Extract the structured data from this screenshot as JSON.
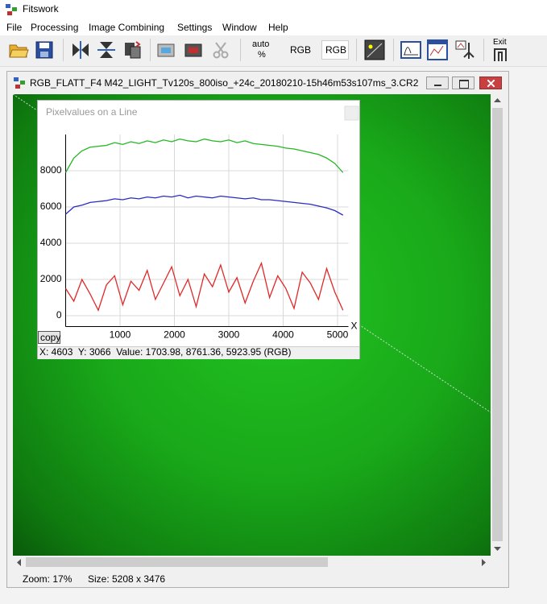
{
  "app": {
    "title": "Fitswork",
    "menu": [
      "File",
      "Processing",
      "Image Combining",
      "Settings",
      "Window",
      "Help"
    ],
    "toolbar": {
      "auto": "auto",
      "percent": "%",
      "rgb_plain": "RGB",
      "rgb_boxed": "RGB",
      "exit": "Exit"
    }
  },
  "document": {
    "title": "RGB_FLATT_F4 M42_LIGHT_Tv120s_800iso_+24c_20180210-15h46m53s107ms_3.CR2",
    "zoom": "Zoom: 17%",
    "size": "Size: 5208 x 3476"
  },
  "plot_window": {
    "copy": "copy",
    "readout": "X: 4603  Y: 3066  Value: 1703.98, 8761.36, 5923.95 (RGB)"
  },
  "chart_data": {
    "type": "line",
    "title": "Pixelvalues on a Line",
    "xlabel": "X",
    "x": [
      0,
      150,
      300,
      450,
      600,
      750,
      900,
      1050,
      1200,
      1350,
      1500,
      1650,
      1800,
      1950,
      2100,
      2250,
      2400,
      2550,
      2700,
      2850,
      3000,
      3150,
      3300,
      3450,
      3600,
      3750,
      3900,
      4050,
      4200,
      4350,
      4500,
      4650,
      4800,
      4950,
      5100
    ],
    "series": [
      {
        "color": "#22b822",
        "values": [
          7900,
          8700,
          9100,
          9300,
          9350,
          9400,
          9550,
          9450,
          9600,
          9500,
          9650,
          9550,
          9700,
          9600,
          9750,
          9650,
          9600,
          9750,
          9650,
          9600,
          9700,
          9550,
          9650,
          9500,
          9450,
          9400,
          9350,
          9250,
          9200,
          9100,
          9000,
          8900,
          8700,
          8400,
          7900
        ]
      },
      {
        "color": "#2b2bc0",
        "values": [
          5600,
          6000,
          6100,
          6250,
          6300,
          6350,
          6450,
          6400,
          6500,
          6450,
          6550,
          6500,
          6600,
          6550,
          6650,
          6500,
          6600,
          6550,
          6500,
          6600,
          6550,
          6500,
          6450,
          6500,
          6400,
          6400,
          6350,
          6300,
          6250,
          6200,
          6150,
          6050,
          5950,
          5800,
          5550
        ]
      },
      {
        "color": "#e02828",
        "values": [
          1500,
          800,
          2000,
          1200,
          300,
          1700,
          2200,
          600,
          1900,
          1400,
          2500,
          900,
          1800,
          2700,
          1100,
          2000,
          500,
          2300,
          1600,
          2800,
          1300,
          2100,
          700,
          1900,
          2900,
          1000,
          2200,
          1500,
          400,
          2400,
          1800,
          900,
          2600,
          1300,
          300
        ]
      }
    ],
    "xlim": [
      0,
      5200
    ],
    "xticks": [
      1000,
      2000,
      3000,
      4000,
      5000
    ],
    "ylim": [
      -600,
      10000
    ],
    "yticks": [
      0,
      2000,
      4000,
      6000,
      8000
    ],
    "grid": true
  }
}
